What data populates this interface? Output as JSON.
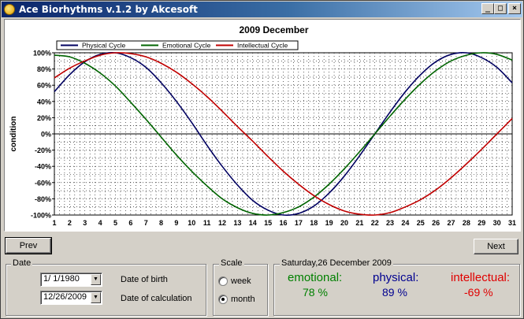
{
  "window": {
    "title": "Ace Biorhythms v.1.2 by Akcesoft",
    "buttons": {
      "minimize": "_",
      "maximize": "□",
      "close": "×"
    }
  },
  "chart_data": {
    "type": "line",
    "title": "2009 December",
    "ylabel": "condition",
    "xlabel": "",
    "x": [
      1,
      2,
      3,
      4,
      5,
      6,
      7,
      8,
      9,
      10,
      11,
      12,
      13,
      14,
      15,
      16,
      17,
      18,
      19,
      20,
      21,
      22,
      23,
      24,
      25,
      26,
      27,
      28,
      29,
      30,
      31
    ],
    "x_tick_labels": [
      "1",
      "2",
      "3",
      "4",
      "5",
      "6",
      "7",
      "8",
      "9",
      "10",
      "11",
      "12",
      "13",
      "14",
      "15",
      "16",
      "17",
      "18",
      "19",
      "20",
      "21",
      "22",
      "23",
      "24",
      "25",
      "26",
      "27",
      "28",
      "29",
      "30",
      "31"
    ],
    "y_tick_labels": [
      "100%",
      "80%",
      "60%",
      "40%",
      "20%",
      "0%",
      "-20%",
      "-40%",
      "-60%",
      "-80%",
      "-100%"
    ],
    "ylim": [
      -100,
      100
    ],
    "xlim": [
      1,
      31
    ],
    "grid": true,
    "legend": "top-left",
    "series": [
      {
        "name": "Physical Cycle",
        "color": "#000060",
        "values": [
          52,
          73,
          89,
          98,
          100,
          94,
          82,
          63,
          40,
          14,
          -14,
          -40,
          -63,
          -82,
          -94,
          -100,
          -98,
          -89,
          -73,
          -52,
          -27,
          0,
          27,
          52,
          73,
          89,
          98,
          100,
          94,
          82,
          63
        ]
      },
      {
        "name": "Emotional Cycle",
        "color": "#006400",
        "values": [
          97,
          95,
          87,
          75,
          59,
          39,
          18,
          -4,
          -26,
          -46,
          -64,
          -80,
          -91,
          -98,
          -100,
          -97,
          -90,
          -78,
          -62,
          -43,
          -22,
          0,
          22,
          43,
          62,
          78,
          90,
          97,
          100,
          98,
          91
        ]
      },
      {
        "name": "Intellectual Cycle",
        "color": "#c00000",
        "values": [
          69,
          81,
          90,
          97,
          100,
          99,
          95,
          87,
          76,
          62,
          46,
          28,
          9,
          -9,
          -28,
          -46,
          -62,
          -76,
          -87,
          -95,
          -99,
          -100,
          -97,
          -90,
          -81,
          -69,
          -54,
          -37,
          -19,
          0,
          19
        ]
      }
    ]
  },
  "nav": {
    "prev_label": "Prev",
    "next_label": "Next"
  },
  "date_group": {
    "legend": "Date",
    "birth_value": "1/ 1/1980",
    "birth_label": "Date of birth",
    "calc_value": "12/26/2009",
    "calc_label": "Date of calculation"
  },
  "scale_group": {
    "legend": "Scale",
    "week_label": "week",
    "month_label": "month",
    "selected": "month"
  },
  "result_group": {
    "legend": "Saturday,26 December 2009",
    "emotional_label": "emotional:",
    "emotional_value": "78 %",
    "physical_label": "physical:",
    "physical_value": "89 %",
    "intellectual_label": "intellectual:",
    "intellectual_value": "-69 %",
    "colors": {
      "emotional": "#008000",
      "physical": "#000090",
      "intellectual": "#e00000"
    }
  }
}
